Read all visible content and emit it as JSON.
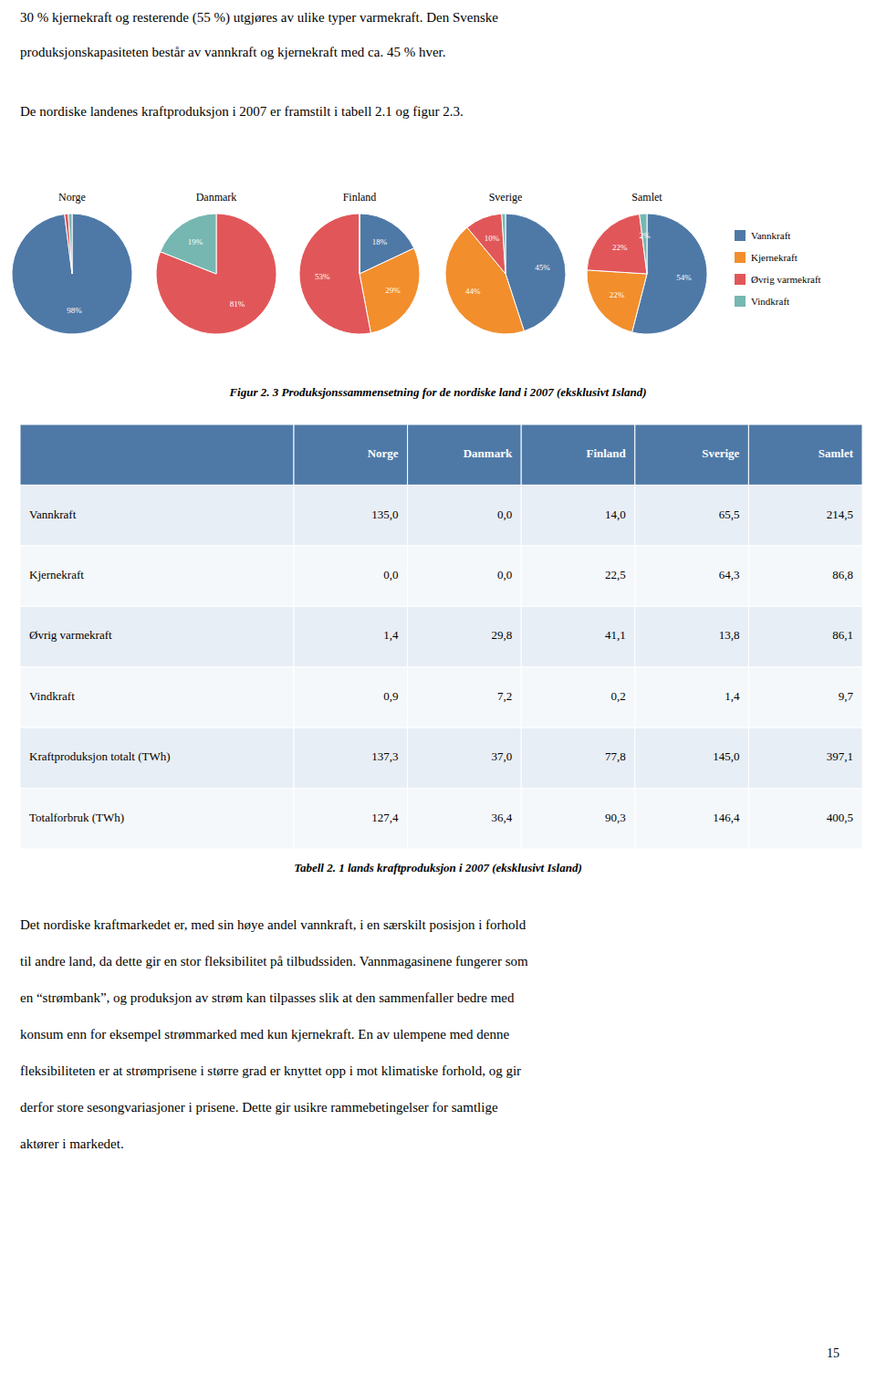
{
  "chart_data": [
    {
      "type": "pie",
      "title": "Norge",
      "categories": [
        "Vannkraft",
        "Øvrig varmekraft",
        "Vindkraft"
      ],
      "values": [
        98,
        1,
        1
      ],
      "value_labels": [
        "98%",
        null,
        null
      ],
      "data_labels": true
    },
    {
      "type": "pie",
      "title": "Danmark",
      "categories": [
        "Øvrig varmekraft",
        "Vindkraft"
      ],
      "values": [
        81,
        19
      ],
      "value_labels": [
        "81%",
        "19%"
      ],
      "data_labels": true
    },
    {
      "type": "pie",
      "title": "Finland",
      "categories": [
        "Vannkraft",
        "Kjernekraft",
        "Øvrig varmekraft",
        "Vindkraft"
      ],
      "values": [
        18,
        29,
        53,
        0
      ],
      "value_labels": [
        "18%",
        "29%",
        "53%",
        null
      ],
      "data_labels": true
    },
    {
      "type": "pie",
      "title": "Sverige",
      "categories": [
        "Vannkraft",
        "Kjernekraft",
        "Øvrig varmekraft",
        "Vindkraft"
      ],
      "values": [
        45,
        44,
        10,
        1
      ],
      "value_labels": [
        "45%",
        "44%",
        "10%",
        null
      ],
      "data_labels": true
    },
    {
      "type": "pie",
      "title": "Samlet",
      "categories": [
        "Vannkraft",
        "Kjernekraft",
        "Øvrig varmekraft",
        "Vindkraft"
      ],
      "values": [
        54,
        22,
        22,
        2
      ],
      "value_labels": [
        "54%",
        "22%",
        "22%",
        "2%"
      ],
      "data_labels": true,
      "legend": "right"
    }
  ],
  "top_text": [
    "30 % kjernekraft og resterende (55 %) utgjøres av ulike typer varmekraft. Den Svenske",
    "produksjonskapasiteten består av vannkraft og kjernekraft med ca. 45 % hver.",
    "De nordiske landenes kraftproduksjon i 2007 er framstilt i tabell 2.1 og figur 2.3."
  ],
  "figure_caption": "Figur 2. 3 Produksjonssammensetning for de nordiske land i 2007 (eksklusivt Island)",
  "table": {
    "header": [
      null,
      "Norge",
      "Danmark",
      "Finland",
      "Sverige",
      "Samlet"
    ],
    "rows": [
      [
        "Vannkraft",
        "135,0",
        "0,0",
        "14,0",
        "65,5",
        "214,5"
      ],
      [
        "Kjernekraft",
        "0,0",
        "0,0",
        "22,5",
        "64,3",
        "86,8"
      ],
      [
        "Øvrig varmekraft",
        "1,4",
        "29,8",
        "41,1",
        "13,8",
        "86,1"
      ],
      [
        "Vindkraft",
        "0,9",
        "7,2",
        "0,2",
        "1,4",
        "9,7"
      ],
      [
        "Kraftproduksjon totalt (TWh)",
        "137,3",
        "37,0",
        "77,8",
        "145,0",
        "397,1"
      ],
      [
        "Totalforbruk (TWh)",
        "127,4",
        "36,4",
        "90,3",
        "146,4",
        "400,5"
      ]
    ]
  },
  "table_caption": "Tabell 2. 1 lands kraftproduksjon i 2007 (eksklusivt Island)",
  "body_text": [
    "Det nordiske kraftmarkedet er, med sin høye andel vannkraft, i en særskilt posisjon i forhold",
    "til andre land, da dette gir en stor fleksibilitet på tilbudssiden. Vannmagasinene fungerer som",
    "en “strømbank”, og produksjon av strøm kan tilpasses slik at den sammenfaller bedre med",
    "konsum enn for eksempel strømmarked med kun kjernekraft. En av ulempene med denne",
    "fleksibiliteten er at strømprisene i større grad er knyttet opp i mot klimatiske forhold, og gir",
    "derfor store sesongvariasjoner i prisene. Dette gir usikre rammebetingelser for samtlige",
    "aktører i markedet."
  ],
  "page_number": "15"
}
